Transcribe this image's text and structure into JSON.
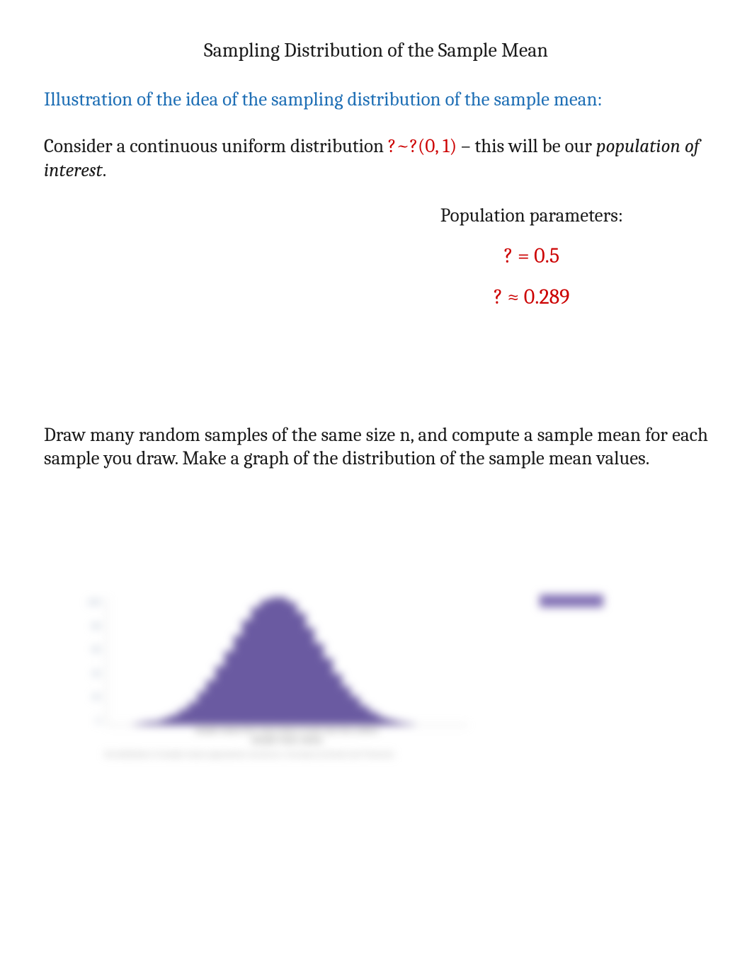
{
  "title": "Sampling Distribution of the Sample Mean",
  "subtitle": "Illustration of the idea of the sampling distribution of the sample mean:",
  "para1": {
    "pre": "Consider a continuous uniform distribution    ",
    "dist": "?~?(0, 1)",
    "post": "     – this will be our ",
    "italic": "population of interest",
    "end": "."
  },
  "params": {
    "label": "Population parameters:",
    "mu": "? = 0.5",
    "sigma": "? ≈ 0.289"
  },
  "para2": "Draw many random samples of the same size n, and compute a sample mean for each sample you draw. Make a graph of the distribution of the sample mean values.",
  "chart": {
    "type": "histogram",
    "bar_color": "#6a5aa1",
    "background_color": "#ffffff",
    "axis_color": "#c8c8c8",
    "ytick_labels": [
      "100",
      "80",
      "60",
      "40",
      "20",
      "0"
    ],
    "ytick_color": "#8fa0b8",
    "ylim": [
      0,
      100
    ],
    "bin_heights": [
      0,
      0,
      0,
      1,
      2,
      3,
      5,
      8,
      12,
      18,
      26,
      35,
      46,
      58,
      70,
      82,
      92,
      98,
      100,
      100,
      96,
      88,
      76,
      64,
      52,
      40,
      30,
      22,
      15,
      10,
      6,
      4,
      2,
      1,
      0,
      0,
      0,
      0,
      0,
      0
    ],
    "xlabel_line": "sample means from many draws of each size from uniform",
    "xtitle": "sample mean values",
    "footnote_text": "the distribution of sample means approaches normal as n increases (Central Limit Theorem)"
  }
}
